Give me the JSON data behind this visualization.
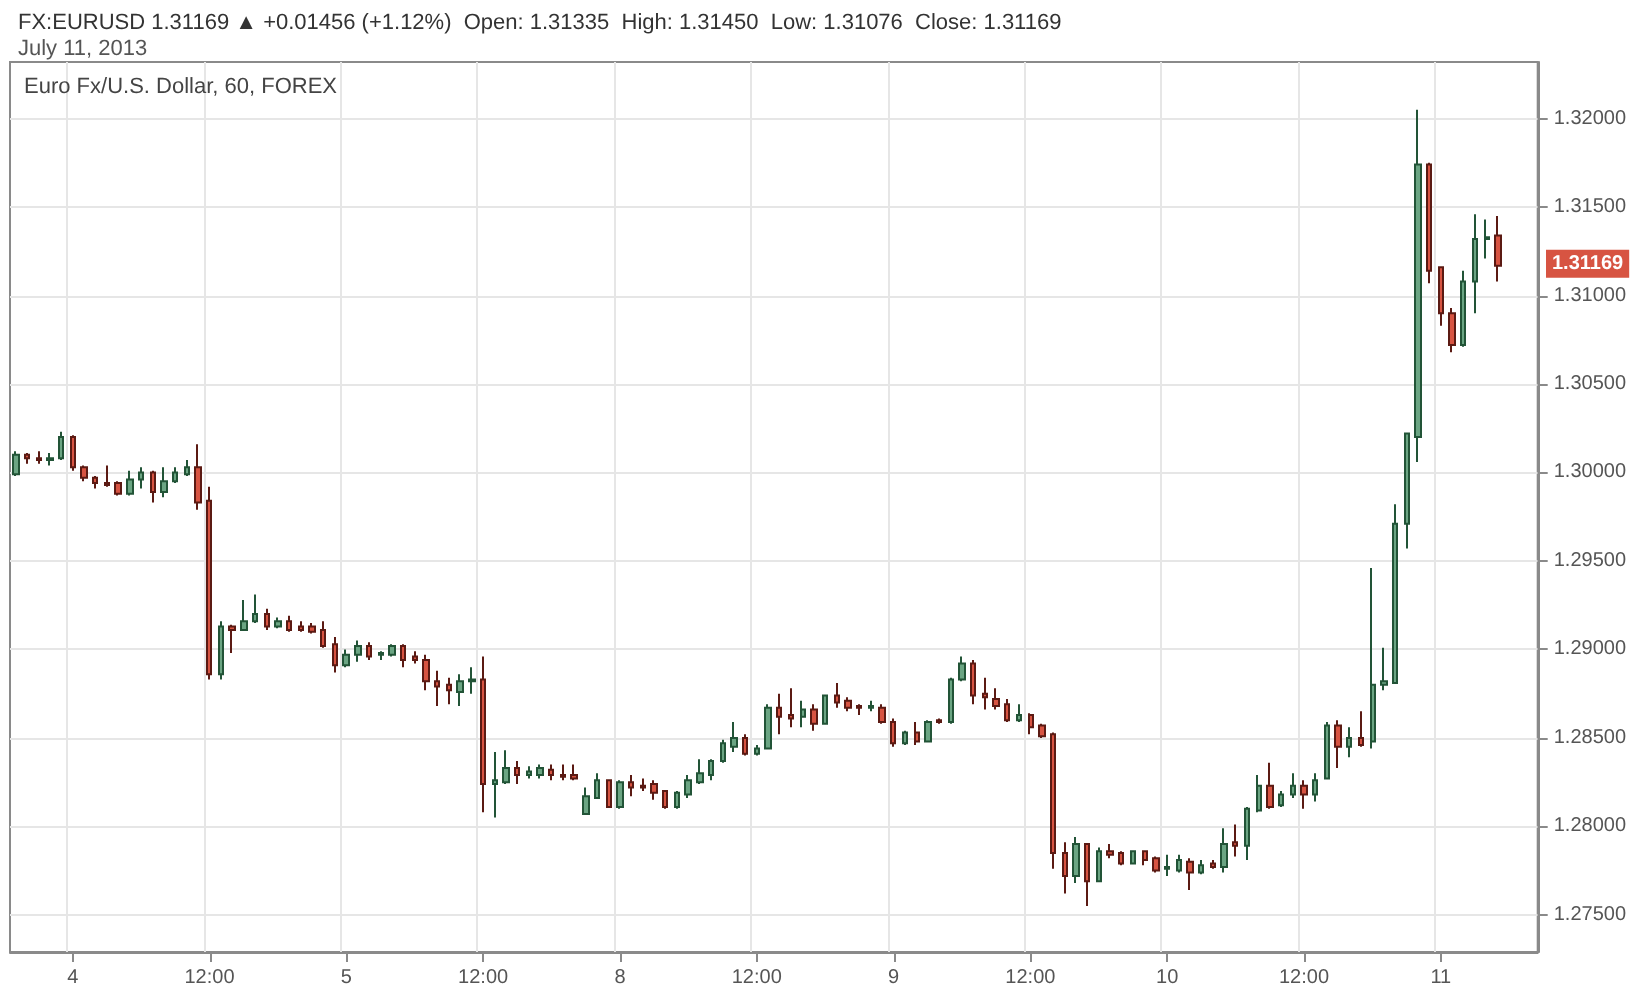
{
  "chart_data": {
    "type": "candlestick",
    "title": "FX:EURUSD 1.31169 ▲ +0.01456 (+1.12%)  Open: 1.31335  High: 1.31450  Low: 1.31076  Close: 1.31169",
    "subtitle": "July 11, 2013",
    "annotations": [
      "Euro Fx/U.S. Dollar, 60, FOREX",
      "1.31169"
    ],
    "categories": [
      null,
      null,
      null,
      null,
      null,
      "4",
      null,
      null,
      null,
      null,
      null,
      null,
      null,
      null,
      null,
      null,
      null,
      "12:00",
      null,
      null,
      null,
      null,
      null,
      null,
      null,
      null,
      null,
      null,
      null,
      "5",
      null,
      null,
      null,
      null,
      null,
      null,
      null,
      null,
      null,
      null,
      null,
      "12:00",
      null,
      null,
      null,
      null,
      null,
      null,
      null,
      null,
      null,
      null,
      null,
      "8",
      null,
      null,
      null,
      null,
      null,
      null,
      null,
      null,
      null,
      null,
      null,
      "12:00",
      null,
      null,
      null,
      null,
      null,
      null,
      null,
      null,
      null,
      null,
      null,
      "9",
      null,
      null,
      null,
      null,
      null,
      null,
      null,
      null,
      null,
      null,
      null,
      "12:00",
      null,
      null,
      null,
      null,
      null,
      null,
      null,
      null,
      null,
      null,
      null,
      "10",
      null,
      null,
      null,
      null,
      null,
      null,
      null,
      null,
      null,
      null,
      null,
      "12:00",
      null,
      null,
      null,
      null,
      null,
      null,
      null,
      null,
      null,
      null,
      null,
      "11",
      null,
      null,
      null,
      null,
      null
    ],
    "ohlc": [
      [
        1.2999,
        1.3012,
        1.2998,
        1.301
      ],
      [
        1.301,
        1.3011,
        1.3005,
        1.3008
      ],
      [
        1.3008,
        1.3012,
        1.3005,
        1.3007
      ],
      [
        1.3007,
        1.3011,
        1.3004,
        1.3008
      ],
      [
        1.3008,
        1.3023,
        1.3007,
        1.302
      ],
      [
        1.302,
        1.3021,
        1.3001,
        1.3003
      ],
      [
        1.3003,
        1.3004,
        1.2995,
        1.2997
      ],
      [
        1.2997,
        1.2998,
        1.2991,
        1.2994
      ],
      [
        1.2994,
        1.3004,
        1.2992,
        1.2993
      ],
      [
        1.2994,
        1.2995,
        1.2987,
        1.2988
      ],
      [
        1.2988,
        1.3001,
        1.2987,
        1.2996
      ],
      [
        1.2996,
        1.3003,
        1.2991,
        1.3
      ],
      [
        1.3,
        1.3001,
        1.2983,
        1.2989
      ],
      [
        1.2989,
        1.3003,
        1.2986,
        1.2995
      ],
      [
        1.2995,
        1.3003,
        1.2994,
        1.3
      ],
      [
        1.2999,
        1.3007,
        1.2998,
        1.3003
      ],
      [
        1.3003,
        1.3016,
        1.2979,
        1.2983
      ],
      [
        1.2984,
        1.2992,
        1.2883,
        1.2886
      ],
      [
        1.2886,
        1.2916,
        1.2883,
        1.2913
      ],
      [
        1.2913,
        1.2914,
        1.2898,
        1.2911
      ],
      [
        1.2911,
        1.2928,
        1.2911,
        1.2916
      ],
      [
        1.2916,
        1.2931,
        1.2915,
        1.292
      ],
      [
        1.292,
        1.2923,
        1.2911,
        1.2913
      ],
      [
        1.2913,
        1.2918,
        1.2912,
        1.2916
      ],
      [
        1.2916,
        1.2919,
        1.291,
        1.2911
      ],
      [
        1.2913,
        1.2916,
        1.291,
        1.2911
      ],
      [
        1.2913,
        1.2915,
        1.2909,
        1.291
      ],
      [
        1.2911,
        1.2916,
        1.2901,
        1.2902
      ],
      [
        1.2903,
        1.2907,
        1.2887,
        1.2891
      ],
      [
        1.2891,
        1.29,
        1.289,
        1.2897
      ],
      [
        1.2897,
        1.2905,
        1.2893,
        1.2902
      ],
      [
        1.2902,
        1.2904,
        1.2894,
        1.2896
      ],
      [
        1.2897,
        1.2899,
        1.2894,
        1.2898
      ],
      [
        1.2897,
        1.2903,
        1.2896,
        1.2902
      ],
      [
        1.2902,
        1.2903,
        1.289,
        1.2894
      ],
      [
        1.2896,
        1.2899,
        1.2892,
        1.2894
      ],
      [
        1.2894,
        1.2897,
        1.2877,
        1.2882
      ],
      [
        1.2882,
        1.2888,
        1.2868,
        1.2879
      ],
      [
        1.288,
        1.2884,
        1.2869,
        1.2877
      ],
      [
        1.2876,
        1.2886,
        1.2868,
        1.2882
      ],
      [
        1.2882,
        1.289,
        1.2875,
        1.2883
      ],
      [
        1.2883,
        1.2896,
        1.2808,
        1.2824
      ],
      [
        1.2824,
        1.2842,
        1.2805,
        1.2826
      ],
      [
        1.2825,
        1.2843,
        1.2824,
        1.2833
      ],
      [
        1.2833,
        1.2837,
        1.2824,
        1.2829
      ],
      [
        1.2829,
        1.2834,
        1.2827,
        1.2831
      ],
      [
        1.2829,
        1.2835,
        1.2827,
        1.2833
      ],
      [
        1.2832,
        1.2835,
        1.2826,
        1.2829
      ],
      [
        1.2829,
        1.2835,
        1.2826,
        1.2828
      ],
      [
        1.2829,
        1.2835,
        1.2826,
        1.2827
      ],
      [
        1.2807,
        1.2822,
        1.2807,
        1.2817
      ],
      [
        1.2816,
        1.283,
        1.2816,
        1.2826
      ],
      [
        1.2826,
        1.2826,
        1.2811,
        1.2811
      ],
      [
        1.2811,
        1.2826,
        1.281,
        1.2825
      ],
      [
        1.2825,
        1.2829,
        1.2817,
        1.2822
      ],
      [
        1.2823,
        1.2827,
        1.282,
        1.2822
      ],
      [
        1.2824,
        1.2826,
        1.2815,
        1.2819
      ],
      [
        1.282,
        1.282,
        1.281,
        1.2811
      ],
      [
        1.2811,
        1.282,
        1.281,
        1.2819
      ],
      [
        1.2818,
        1.2829,
        1.2816,
        1.2826
      ],
      [
        1.2825,
        1.2838,
        1.2824,
        1.283
      ],
      [
        1.2829,
        1.2838,
        1.2826,
        1.2837
      ],
      [
        1.2837,
        1.2849,
        1.2836,
        1.2847
      ],
      [
        1.2845,
        1.2859,
        1.2842,
        1.285
      ],
      [
        1.285,
        1.2852,
        1.284,
        1.2841
      ],
      [
        1.2841,
        1.2846,
        1.284,
        1.2844
      ],
      [
        1.2844,
        1.2869,
        1.2844,
        1.2867
      ],
      [
        1.2867,
        1.2875,
        1.2852,
        1.2862
      ],
      [
        1.2863,
        1.2878,
        1.2856,
        1.2861
      ],
      [
        1.2862,
        1.2871,
        1.2856,
        1.2866
      ],
      [
        1.2866,
        1.2869,
        1.2854,
        1.2858
      ],
      [
        1.2858,
        1.2874,
        1.2858,
        1.2874
      ],
      [
        1.2874,
        1.2881,
        1.2867,
        1.287
      ],
      [
        1.2871,
        1.2873,
        1.2865,
        1.2867
      ],
      [
        1.2868,
        1.2869,
        1.2863,
        1.2867
      ],
      [
        1.2867,
        1.2871,
        1.2865,
        1.2868
      ],
      [
        1.2867,
        1.2869,
        1.2858,
        1.2859
      ],
      [
        1.2859,
        1.2861,
        1.2845,
        1.2847
      ],
      [
        1.2847,
        1.2854,
        1.2846,
        1.2853
      ],
      [
        1.2853,
        1.2859,
        1.2846,
        1.2848
      ],
      [
        1.2848,
        1.286,
        1.2848,
        1.2859
      ],
      [
        1.286,
        1.2861,
        1.2858,
        1.2859
      ],
      [
        1.2859,
        1.2884,
        1.2858,
        1.2883
      ],
      [
        1.2883,
        1.2896,
        1.2882,
        1.2892
      ],
      [
        1.2892,
        1.2894,
        1.2869,
        1.2874
      ],
      [
        1.2875,
        1.2884,
        1.2866,
        1.2873
      ],
      [
        1.2872,
        1.2878,
        1.2866,
        1.2868
      ],
      [
        1.2869,
        1.2872,
        1.2859,
        1.286
      ],
      [
        1.286,
        1.2869,
        1.2859,
        1.2863
      ],
      [
        1.2863,
        1.2864,
        1.2852,
        1.2856
      ],
      [
        1.2857,
        1.2858,
        1.285,
        1.2851
      ],
      [
        1.2852,
        1.2853,
        1.2776,
        1.2785
      ],
      [
        1.2785,
        1.2791,
        1.2762,
        1.2772
      ],
      [
        1.2772,
        1.2794,
        1.2768,
        1.279
      ],
      [
        1.279,
        1.279,
        1.2755,
        1.2769
      ],
      [
        1.2769,
        1.2788,
        1.2769,
        1.2786
      ],
      [
        1.2786,
        1.279,
        1.2782,
        1.2784
      ],
      [
        1.2785,
        1.2786,
        1.2778,
        1.2779
      ],
      [
        1.2779,
        1.2786,
        1.2779,
        1.2786
      ],
      [
        1.2786,
        1.2786,
        1.2778,
        1.2781
      ],
      [
        1.2782,
        1.2783,
        1.2774,
        1.2775
      ],
      [
        1.2776,
        1.2784,
        1.2772,
        1.2777
      ],
      [
        1.2775,
        1.2784,
        1.2774,
        1.2781
      ],
      [
        1.278,
        1.2782,
        1.2764,
        1.2774
      ],
      [
        1.2774,
        1.2781,
        1.2773,
        1.2778
      ],
      [
        1.2779,
        1.2781,
        1.2776,
        1.2777
      ],
      [
        1.2777,
        1.2799,
        1.2774,
        1.279
      ],
      [
        1.2791,
        1.2801,
        1.2783,
        1.2789
      ],
      [
        1.2789,
        1.2811,
        1.2781,
        1.281
      ],
      [
        1.2809,
        1.2829,
        1.2808,
        1.2823
      ],
      [
        1.2823,
        1.2836,
        1.281,
        1.2811
      ],
      [
        1.2812,
        1.282,
        1.2811,
        1.2818
      ],
      [
        1.2818,
        1.283,
        1.2816,
        1.2823
      ],
      [
        1.2823,
        1.2826,
        1.281,
        1.2818
      ],
      [
        1.2818,
        1.283,
        1.2814,
        1.2826
      ],
      [
        1.2827,
        1.2859,
        1.2827,
        1.2857
      ],
      [
        1.2857,
        1.286,
        1.2833,
        1.2845
      ],
      [
        1.2845,
        1.2856,
        1.2839,
        1.285
      ],
      [
        1.285,
        1.2865,
        1.2845,
        1.2846
      ],
      [
        1.2848,
        1.2946,
        1.2844,
        1.288
      ],
      [
        1.288,
        1.2901,
        1.2877,
        1.2882
      ],
      [
        1.2881,
        1.2982,
        1.2881,
        1.2971
      ],
      [
        1.2971,
        1.3022,
        1.2957,
        1.3022
      ],
      [
        1.302,
        1.3205,
        1.3006,
        1.3174
      ],
      [
        1.3174,
        1.3175,
        1.3107,
        1.3114
      ],
      [
        1.3116,
        1.3116,
        1.3083,
        1.309
      ],
      [
        1.309,
        1.3093,
        1.3068,
        1.3072
      ],
      [
        1.3072,
        1.3114,
        1.3071,
        1.3108
      ],
      [
        1.3108,
        1.3146,
        1.309,
        1.3132
      ],
      [
        1.3132,
        1.3143,
        1.3121,
        1.3133
      ],
      [
        1.3134,
        1.3145,
        1.3108,
        1.31169
      ]
    ],
    "ylim": [
      1.2729,
      1.3232
    ],
    "yticks": [
      {
        "value": 1.275,
        "label": "1.27500"
      },
      {
        "value": 1.28,
        "label": "1.28000"
      },
      {
        "value": 1.285,
        "label": "1.28500"
      },
      {
        "value": 1.29,
        "label": "1.29000"
      },
      {
        "value": 1.295,
        "label": "1.29500"
      },
      {
        "value": 1.3,
        "label": "1.30000"
      },
      {
        "value": 1.305,
        "label": "1.30500"
      },
      {
        "value": 1.31,
        "label": "1.31000"
      },
      {
        "value": 1.315,
        "label": "1.31500"
      },
      {
        "value": 1.32,
        "label": "1.32000"
      }
    ],
    "grid": true
  }
}
